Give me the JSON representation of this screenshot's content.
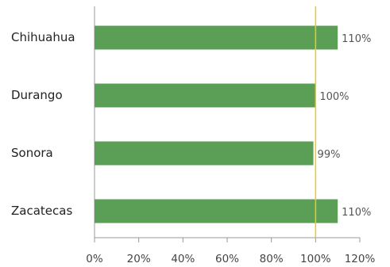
{
  "chart_data": {
    "type": "barh",
    "categories": [
      "Chihuahua",
      "Durango",
      "Sonora",
      "Zacatecas"
    ],
    "values": [
      110,
      100,
      99,
      110
    ],
    "value_labels": [
      "110%",
      "100%",
      "99%",
      "110%"
    ],
    "color": "#5b9f57",
    "xlim": [
      0,
      120
    ],
    "xticks": [
      {
        "value": 0,
        "label": "0%"
      },
      {
        "value": 20,
        "label": "20%"
      },
      {
        "value": 40,
        "label": "40%"
      },
      {
        "value": 60,
        "label": "60%"
      },
      {
        "value": 80,
        "label": "80%"
      },
      {
        "value": 100,
        "label": "100%"
      },
      {
        "value": 120,
        "label": "120%"
      }
    ],
    "reference_line": 100,
    "reference_color": "#f5c518"
  }
}
